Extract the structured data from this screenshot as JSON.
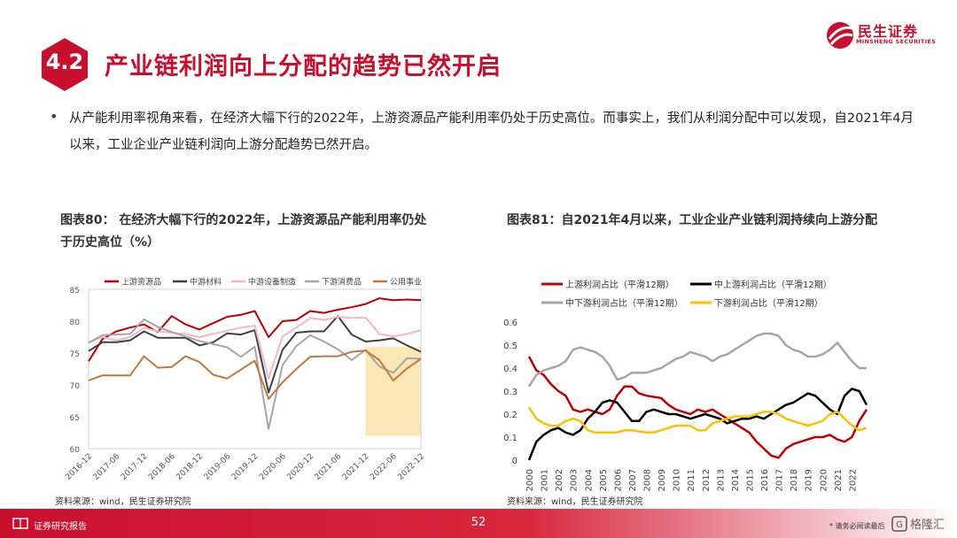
{
  "header": {
    "section_number": "4.2",
    "title": "产业链利润向上分配的趋势已然开启",
    "logo_cn": "民生证券",
    "logo_en": "MINSHENG SECURITIES"
  },
  "body": {
    "bullet": "从产能利用率视角来看，在经济大幅下行的2022年，上游资源品产能利用率仍处于历史高位。而事实上，我们从利润分配中可以发现，自2021年4月以来，工业企业产业链利润向上游分配趋势已然开启。"
  },
  "chart1_caption": "图表80：  在经济大幅下行的2022年，上游资源品产能利用率仍处于历史高位（%）",
  "chart2_caption": "图表81：自2021年4月以来，工业企业产业链利润持续向上游分配",
  "source1": "资料来源：wind，民生证券研究院",
  "source2": "资料来源：wind，民生证券研究院",
  "footer": {
    "label": "证券研究报告",
    "page": "52",
    "disclaimer": "* 请务必阅读最后",
    "watermark": "格隆汇"
  },
  "colors": {
    "brand_red": "#c8102e",
    "upstream": "#c00000",
    "midstream": "#404040",
    "equipment": "#f4b6c2",
    "downstream": "#a6a6a6",
    "utilities": "#c5773a",
    "highlight": "#fbe7b5",
    "mid_upper": "#000000",
    "downstream_yellow": "#ffc000"
  },
  "chart_data": [
    {
      "type": "line",
      "ylim": [
        60,
        85
      ],
      "yticks": [
        60,
        65,
        70,
        75,
        80,
        85
      ],
      "xticks": [
        "2016-12",
        "2017-06",
        "2017-12",
        "2018-06",
        "2018-12",
        "2019-06",
        "2019-12",
        "2020-06",
        "2020-12",
        "2021-06",
        "2021-12",
        "2022-06",
        "2022-12"
      ],
      "highlight": [
        "2021-12",
        "2022-12"
      ],
      "legend_position": "top",
      "x": [
        "2016Q4",
        "2017Q1",
        "2017Q2",
        "2017Q3",
        "2017Q4",
        "2018Q1",
        "2018Q2",
        "2018Q3",
        "2018Q4",
        "2019Q1",
        "2019Q2",
        "2019Q3",
        "2019Q4",
        "2020Q1",
        "2020Q2",
        "2020Q3",
        "2020Q4",
        "2021Q1",
        "2021Q2",
        "2021Q3",
        "2021Q4",
        "2022Q1",
        "2022Q2",
        "2022Q3",
        "2022Q4"
      ],
      "series": [
        {
          "name": "上游资源品",
          "color": "#c00000",
          "values": [
            73.7,
            77.2,
            78.4,
            79.0,
            79.5,
            78.3,
            80.8,
            79.5,
            78.7,
            79.7,
            80.7,
            81.0,
            81.6,
            77.5,
            80.0,
            80.2,
            81.6,
            81.3,
            81.8,
            82.2,
            82.7,
            83.6,
            83.3,
            83.4,
            83.3
          ]
        },
        {
          "name": "中游材料",
          "color": "#404040",
          "values": [
            75.3,
            76.7,
            76.7,
            77.0,
            78.4,
            77.4,
            77.4,
            77.4,
            76.2,
            76.7,
            78.1,
            77.9,
            78.6,
            68.8,
            75.5,
            78.2,
            78.4,
            78.4,
            80.8,
            77.9,
            76.8,
            77.0,
            77.3,
            76.2,
            75.2
          ]
        },
        {
          "name": "中游设备制造",
          "color": "#f4b6c2",
          "values": [
            76.7,
            77.5,
            77.0,
            77.5,
            79.0,
            78.4,
            78.2,
            78.0,
            77.5,
            78.0,
            78.5,
            79.0,
            79.3,
            71.0,
            77.6,
            79.0,
            80.5,
            80.2,
            80.7,
            80.5,
            80.6,
            78.0,
            77.6,
            78.0,
            78.6
          ]
        },
        {
          "name": "下游消费品",
          "color": "#a6a6a6",
          "values": [
            76.6,
            77.8,
            77.9,
            78.0,
            80.3,
            79.1,
            78.3,
            77.6,
            76.9,
            76.4,
            75.9,
            74.4,
            76.0,
            63.1,
            73.1,
            76.1,
            77.8,
            76.8,
            75.6,
            73.9,
            75.5,
            72.9,
            71.9,
            74.2,
            74.1
          ]
        },
        {
          "name": "公用事业",
          "color": "#c5773a",
          "values": [
            70.7,
            71.5,
            71.5,
            71.5,
            74.5,
            72.7,
            72.8,
            74.5,
            73.6,
            71.6,
            71.0,
            72.4,
            73.8,
            67.8,
            70.4,
            72.5,
            74.4,
            74.5,
            74.5,
            75.2,
            75.4,
            73.9,
            70.7,
            72.6,
            74.1
          ]
        }
      ]
    },
    {
      "type": "line",
      "ylim": [
        0,
        0.6
      ],
      "yticks": [
        0,
        0.1,
        0.2,
        0.3,
        0.4,
        0.5,
        0.6
      ],
      "xticks": [
        "2000",
        "2001",
        "2002",
        "2003",
        "2004",
        "2005",
        "2006",
        "2007",
        "2008",
        "2009",
        "2010",
        "2011",
        "2012",
        "2013",
        "2014",
        "2015",
        "2016",
        "2017",
        "2018",
        "2019",
        "2020",
        "2021",
        "2022"
      ],
      "legend_position": "top",
      "series": [
        {
          "name": "上游利润占比（平滑12期）",
          "color": "#c00000",
          "points": [
            [
              2000.0,
              0.45
            ],
            [
              2000.5,
              0.39
            ],
            [
              2001.0,
              0.37
            ],
            [
              2001.5,
              0.33
            ],
            [
              2002.0,
              0.3
            ],
            [
              2002.5,
              0.28
            ],
            [
              2003.0,
              0.22
            ],
            [
              2003.5,
              0.21
            ],
            [
              2004.0,
              0.22
            ],
            [
              2004.5,
              0.21
            ],
            [
              2005.0,
              0.2
            ],
            [
              2005.5,
              0.22
            ],
            [
              2006.0,
              0.28
            ],
            [
              2006.5,
              0.32
            ],
            [
              2007.0,
              0.32
            ],
            [
              2007.5,
              0.29
            ],
            [
              2008.0,
              0.28
            ],
            [
              2008.5,
              0.275
            ],
            [
              2009.0,
              0.27
            ],
            [
              2009.5,
              0.24
            ],
            [
              2010.0,
              0.22
            ],
            [
              2010.5,
              0.21
            ],
            [
              2011.0,
              0.2
            ],
            [
              2011.5,
              0.22
            ],
            [
              2012.0,
              0.21
            ],
            [
              2012.5,
              0.22
            ],
            [
              2013.0,
              0.2
            ],
            [
              2013.5,
              0.18
            ],
            [
              2014.0,
              0.16
            ],
            [
              2014.5,
              0.14
            ],
            [
              2015.0,
              0.12
            ],
            [
              2015.5,
              0.08
            ],
            [
              2016.0,
              0.05
            ],
            [
              2016.5,
              0.02
            ],
            [
              2017.0,
              0.01
            ],
            [
              2017.5,
              0.05
            ],
            [
              2018.0,
              0.07
            ],
            [
              2018.5,
              0.08
            ],
            [
              2019.0,
              0.09
            ],
            [
              2019.5,
              0.1
            ],
            [
              2020.0,
              0.1
            ],
            [
              2020.5,
              0.11
            ],
            [
              2021.0,
              0.09
            ],
            [
              2021.5,
              0.08
            ],
            [
              2022.0,
              0.1
            ],
            [
              2022.5,
              0.17
            ],
            [
              2023.0,
              0.22
            ]
          ]
        },
        {
          "name": "中上游利润占比（平滑12期）",
          "color": "#000000",
          "points": [
            [
              2000.0,
              0.0
            ],
            [
              2000.5,
              0.08
            ],
            [
              2001.0,
              0.11
            ],
            [
              2001.5,
              0.13
            ],
            [
              2002.0,
              0.14
            ],
            [
              2002.5,
              0.12
            ],
            [
              2003.0,
              0.11
            ],
            [
              2003.5,
              0.13
            ],
            [
              2004.0,
              0.18
            ],
            [
              2004.5,
              0.21
            ],
            [
              2005.0,
              0.25
            ],
            [
              2005.5,
              0.26
            ],
            [
              2006.0,
              0.25
            ],
            [
              2006.5,
              0.21
            ],
            [
              2007.0,
              0.17
            ],
            [
              2007.5,
              0.17
            ],
            [
              2008.0,
              0.21
            ],
            [
              2008.5,
              0.22
            ],
            [
              2009.0,
              0.21
            ],
            [
              2009.5,
              0.2
            ],
            [
              2010.0,
              0.2
            ],
            [
              2010.5,
              0.19
            ],
            [
              2011.0,
              0.18
            ],
            [
              2011.5,
              0.19
            ],
            [
              2012.0,
              0.2
            ],
            [
              2012.5,
              0.19
            ],
            [
              2013.0,
              0.18
            ],
            [
              2013.5,
              0.16
            ],
            [
              2014.0,
              0.17
            ],
            [
              2014.5,
              0.18
            ],
            [
              2015.0,
              0.18
            ],
            [
              2015.5,
              0.19
            ],
            [
              2016.0,
              0.18
            ],
            [
              2016.5,
              0.2
            ],
            [
              2017.0,
              0.22
            ],
            [
              2017.5,
              0.24
            ],
            [
              2018.0,
              0.25
            ],
            [
              2018.5,
              0.27
            ],
            [
              2019.0,
              0.29
            ],
            [
              2019.5,
              0.28
            ],
            [
              2020.0,
              0.25
            ],
            [
              2020.5,
              0.22
            ],
            [
              2021.0,
              0.2
            ],
            [
              2021.5,
              0.28
            ],
            [
              2022.0,
              0.31
            ],
            [
              2022.5,
              0.3
            ],
            [
              2023.0,
              0.24
            ]
          ]
        },
        {
          "name": "中下游利润占比（平滑12期）",
          "color": "#a6a6a6",
          "points": [
            [
              2000.0,
              0.32
            ],
            [
              2000.5,
              0.37
            ],
            [
              2001.0,
              0.39
            ],
            [
              2001.5,
              0.4
            ],
            [
              2002.0,
              0.41
            ],
            [
              2002.5,
              0.43
            ],
            [
              2003.0,
              0.48
            ],
            [
              2003.5,
              0.49
            ],
            [
              2004.0,
              0.48
            ],
            [
              2004.5,
              0.47
            ],
            [
              2005.0,
              0.45
            ],
            [
              2005.5,
              0.41
            ],
            [
              2006.0,
              0.35
            ],
            [
              2006.5,
              0.36
            ],
            [
              2007.0,
              0.38
            ],
            [
              2007.5,
              0.38
            ],
            [
              2008.0,
              0.38
            ],
            [
              2008.5,
              0.39
            ],
            [
              2009.0,
              0.4
            ],
            [
              2009.5,
              0.42
            ],
            [
              2010.0,
              0.44
            ],
            [
              2010.5,
              0.45
            ],
            [
              2011.0,
              0.47
            ],
            [
              2011.5,
              0.46
            ],
            [
              2012.0,
              0.45
            ],
            [
              2012.5,
              0.43
            ],
            [
              2013.0,
              0.45
            ],
            [
              2013.5,
              0.46
            ],
            [
              2014.0,
              0.48
            ],
            [
              2014.5,
              0.5
            ],
            [
              2015.0,
              0.52
            ],
            [
              2015.5,
              0.54
            ],
            [
              2016.0,
              0.55
            ],
            [
              2016.5,
              0.55
            ],
            [
              2017.0,
              0.54
            ],
            [
              2017.5,
              0.5
            ],
            [
              2018.0,
              0.48
            ],
            [
              2018.5,
              0.47
            ],
            [
              2019.0,
              0.45
            ],
            [
              2019.5,
              0.45
            ],
            [
              2020.0,
              0.46
            ],
            [
              2020.5,
              0.48
            ],
            [
              2021.0,
              0.51
            ],
            [
              2021.5,
              0.47
            ],
            [
              2022.0,
              0.43
            ],
            [
              2022.5,
              0.4
            ],
            [
              2023.0,
              0.4
            ]
          ]
        },
        {
          "name": "下游利润占比（平滑12期）",
          "color": "#ffc000",
          "points": [
            [
              2000.0,
              0.23
            ],
            [
              2000.5,
              0.18
            ],
            [
              2001.0,
              0.16
            ],
            [
              2001.5,
              0.15
            ],
            [
              2002.0,
              0.15
            ],
            [
              2002.5,
              0.17
            ],
            [
              2003.0,
              0.18
            ],
            [
              2003.5,
              0.17
            ],
            [
              2004.0,
              0.13
            ],
            [
              2004.5,
              0.12
            ],
            [
              2005.0,
              0.12
            ],
            [
              2005.5,
              0.12
            ],
            [
              2006.0,
              0.12
            ],
            [
              2006.5,
              0.13
            ],
            [
              2007.0,
              0.13
            ],
            [
              2007.5,
              0.125
            ],
            [
              2008.0,
              0.12
            ],
            [
              2008.5,
              0.12
            ],
            [
              2009.0,
              0.13
            ],
            [
              2009.5,
              0.14
            ],
            [
              2010.0,
              0.15
            ],
            [
              2010.5,
              0.15
            ],
            [
              2011.0,
              0.15
            ],
            [
              2011.5,
              0.13
            ],
            [
              2012.0,
              0.13
            ],
            [
              2012.5,
              0.16
            ],
            [
              2013.0,
              0.17
            ],
            [
              2013.5,
              0.18
            ],
            [
              2014.0,
              0.19
            ],
            [
              2014.5,
              0.19
            ],
            [
              2015.0,
              0.19
            ],
            [
              2015.5,
              0.2
            ],
            [
              2016.0,
              0.21
            ],
            [
              2016.5,
              0.21
            ],
            [
              2017.0,
              0.2
            ],
            [
              2017.5,
              0.18
            ],
            [
              2018.0,
              0.17
            ],
            [
              2018.5,
              0.16
            ],
            [
              2019.0,
              0.15
            ],
            [
              2019.5,
              0.16
            ],
            [
              2020.0,
              0.17
            ],
            [
              2020.5,
              0.2
            ],
            [
              2021.0,
              0.21
            ],
            [
              2021.5,
              0.18
            ],
            [
              2022.0,
              0.15
            ],
            [
              2022.5,
              0.13
            ],
            [
              2023.0,
              0.14
            ]
          ]
        }
      ]
    }
  ]
}
